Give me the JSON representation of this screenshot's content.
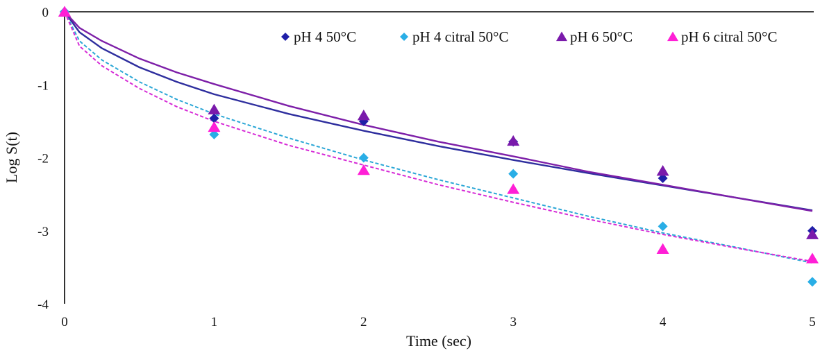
{
  "chart_data": {
    "type": "scatter",
    "title": "",
    "xlabel": "Time (sec)",
    "ylabel": "Log S(t)",
    "xlim": [
      0,
      5
    ],
    "ylim": [
      -4,
      0
    ],
    "x_ticks": [
      0,
      1,
      2,
      3,
      4,
      5
    ],
    "y_ticks": [
      0,
      -1,
      -2,
      -3,
      -4
    ],
    "grid": false,
    "legend_position": "top-right",
    "series": [
      {
        "name": "pH 4 50°C",
        "marker": "diamond",
        "marker_color": "#1f1fa8",
        "line_color": "#2e2e9e",
        "line_style": "solid",
        "points": {
          "x": [
            0,
            1,
            2,
            3,
            4,
            5
          ],
          "y": [
            0,
            -1.46,
            -1.5,
            -1.78,
            -2.28,
            -3.0
          ]
        },
        "fit": {
          "x": [
            0,
            0.1,
            0.25,
            0.5,
            0.75,
            1,
            1.5,
            2,
            2.5,
            3,
            3.5,
            4,
            4.5,
            5
          ],
          "y": [
            0,
            -0.28,
            -0.5,
            -0.76,
            -0.96,
            -1.13,
            -1.4,
            -1.63,
            -1.84,
            -2.03,
            -2.21,
            -2.38,
            -2.55,
            -2.72
          ]
        }
      },
      {
        "name": "pH 4 citral 50°C",
        "marker": "diamond",
        "marker_color": "#29aee6",
        "line_color": "#2aa6d6",
        "line_style": "dashed",
        "points": {
          "x": [
            0,
            1,
            2,
            3,
            4,
            5
          ],
          "y": [
            0,
            -1.68,
            -2.0,
            -2.22,
            -2.94,
            -3.7
          ]
        },
        "fit": {
          "x": [
            0,
            0.1,
            0.25,
            0.5,
            0.75,
            1,
            1.5,
            2,
            2.5,
            3,
            3.5,
            4,
            4.5,
            5
          ],
          "y": [
            0,
            -0.4,
            -0.66,
            -0.96,
            -1.2,
            -1.4,
            -1.73,
            -2.03,
            -2.3,
            -2.55,
            -2.8,
            -3.03,
            -3.23,
            -3.44
          ]
        }
      },
      {
        "name": "pH 6 50°C",
        "marker": "triangle",
        "marker_color": "#7a1aab",
        "line_color": "#7d1fa8",
        "line_style": "solid",
        "points": {
          "x": [
            0,
            1,
            2,
            3,
            4,
            5
          ],
          "y": [
            0,
            -1.34,
            -1.42,
            -1.77,
            -2.18,
            -3.05
          ]
        },
        "fit": {
          "x": [
            0,
            0.1,
            0.25,
            0.5,
            0.75,
            1,
            1.5,
            2,
            2.5,
            3,
            3.5,
            4,
            4.5,
            5
          ],
          "y": [
            0,
            -0.22,
            -0.4,
            -0.64,
            -0.83,
            -0.99,
            -1.29,
            -1.55,
            -1.78,
            -1.98,
            -2.19,
            -2.37,
            -2.55,
            -2.73
          ]
        }
      },
      {
        "name": "pH 6 citral 50°C",
        "marker": "triangle",
        "marker_color": "#ff1fd6",
        "line_color": "#d62ad6",
        "line_style": "dashed",
        "points": {
          "x": [
            0,
            1,
            2,
            3,
            4,
            5
          ],
          "y": [
            0,
            -1.58,
            -2.17,
            -2.43,
            -3.25,
            -3.38
          ]
        },
        "fit": {
          "x": [
            0,
            0.1,
            0.25,
            0.5,
            0.75,
            1,
            1.5,
            2,
            2.5,
            3,
            3.5,
            4,
            4.5,
            5
          ],
          "y": [
            0,
            -0.47,
            -0.74,
            -1.05,
            -1.3,
            -1.5,
            -1.83,
            -2.1,
            -2.37,
            -2.61,
            -2.84,
            -3.05,
            -3.24,
            -3.42
          ]
        }
      }
    ]
  }
}
